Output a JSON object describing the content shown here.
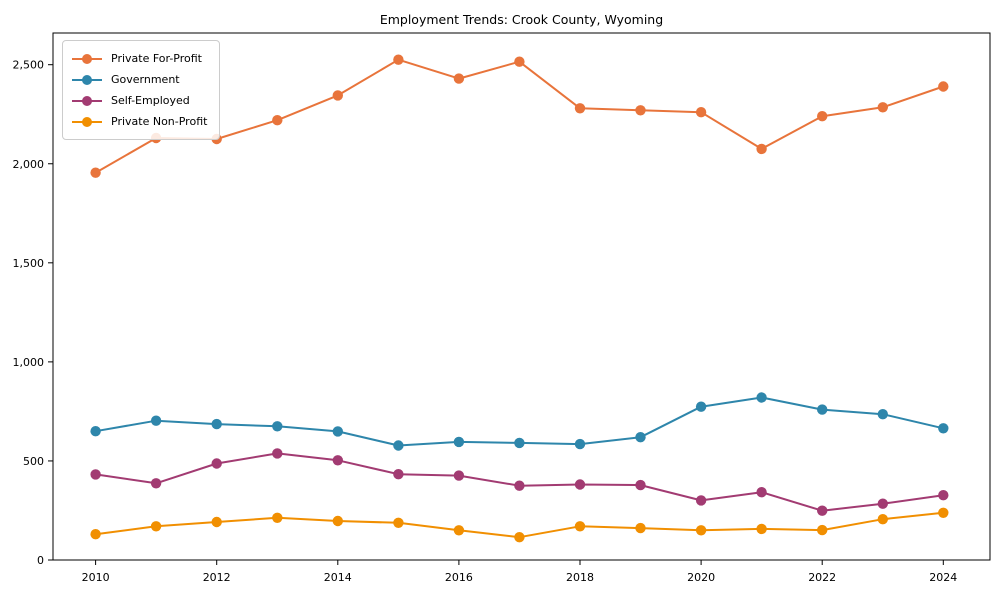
{
  "chart_data": {
    "type": "line",
    "title": "Employment Trends: Crook County, Wyoming",
    "xlabel": "",
    "ylabel": "",
    "grid": false,
    "legend_position": "upper left",
    "x": [
      2010,
      2011,
      2012,
      2013,
      2014,
      2015,
      2016,
      2017,
      2018,
      2019,
      2020,
      2021,
      2022,
      2023,
      2024
    ],
    "xticks": [
      2010,
      2012,
      2014,
      2016,
      2018,
      2020,
      2022,
      2024
    ],
    "yticks": [
      0,
      500,
      1000,
      1500,
      2000,
      2500
    ],
    "ylim": [
      0,
      2660
    ],
    "series": [
      {
        "name": "Private For-Profit",
        "color": "#E8743B",
        "values": [
          1955,
          2130,
          2125,
          2220,
          2345,
          2525,
          2430,
          2515,
          2280,
          2270,
          2260,
          2075,
          2240,
          2285,
          2390
        ]
      },
      {
        "name": "Government",
        "color": "#2E86AB",
        "values": [
          650,
          703,
          686,
          675,
          649,
          578,
          596,
          591,
          585,
          620,
          774,
          820,
          759,
          736,
          665
        ]
      },
      {
        "name": "Self-Employed",
        "color": "#A23B72",
        "values": [
          432,
          387,
          487,
          538,
          503,
          433,
          426,
          375,
          381,
          378,
          301,
          342,
          249,
          284,
          327
        ]
      },
      {
        "name": "Private Non-Profit",
        "color": "#F18F01",
        "values": [
          130,
          170,
          192,
          213,
          197,
          188,
          150,
          115,
          170,
          161,
          150,
          157,
          151,
          206,
          238
        ]
      }
    ]
  }
}
